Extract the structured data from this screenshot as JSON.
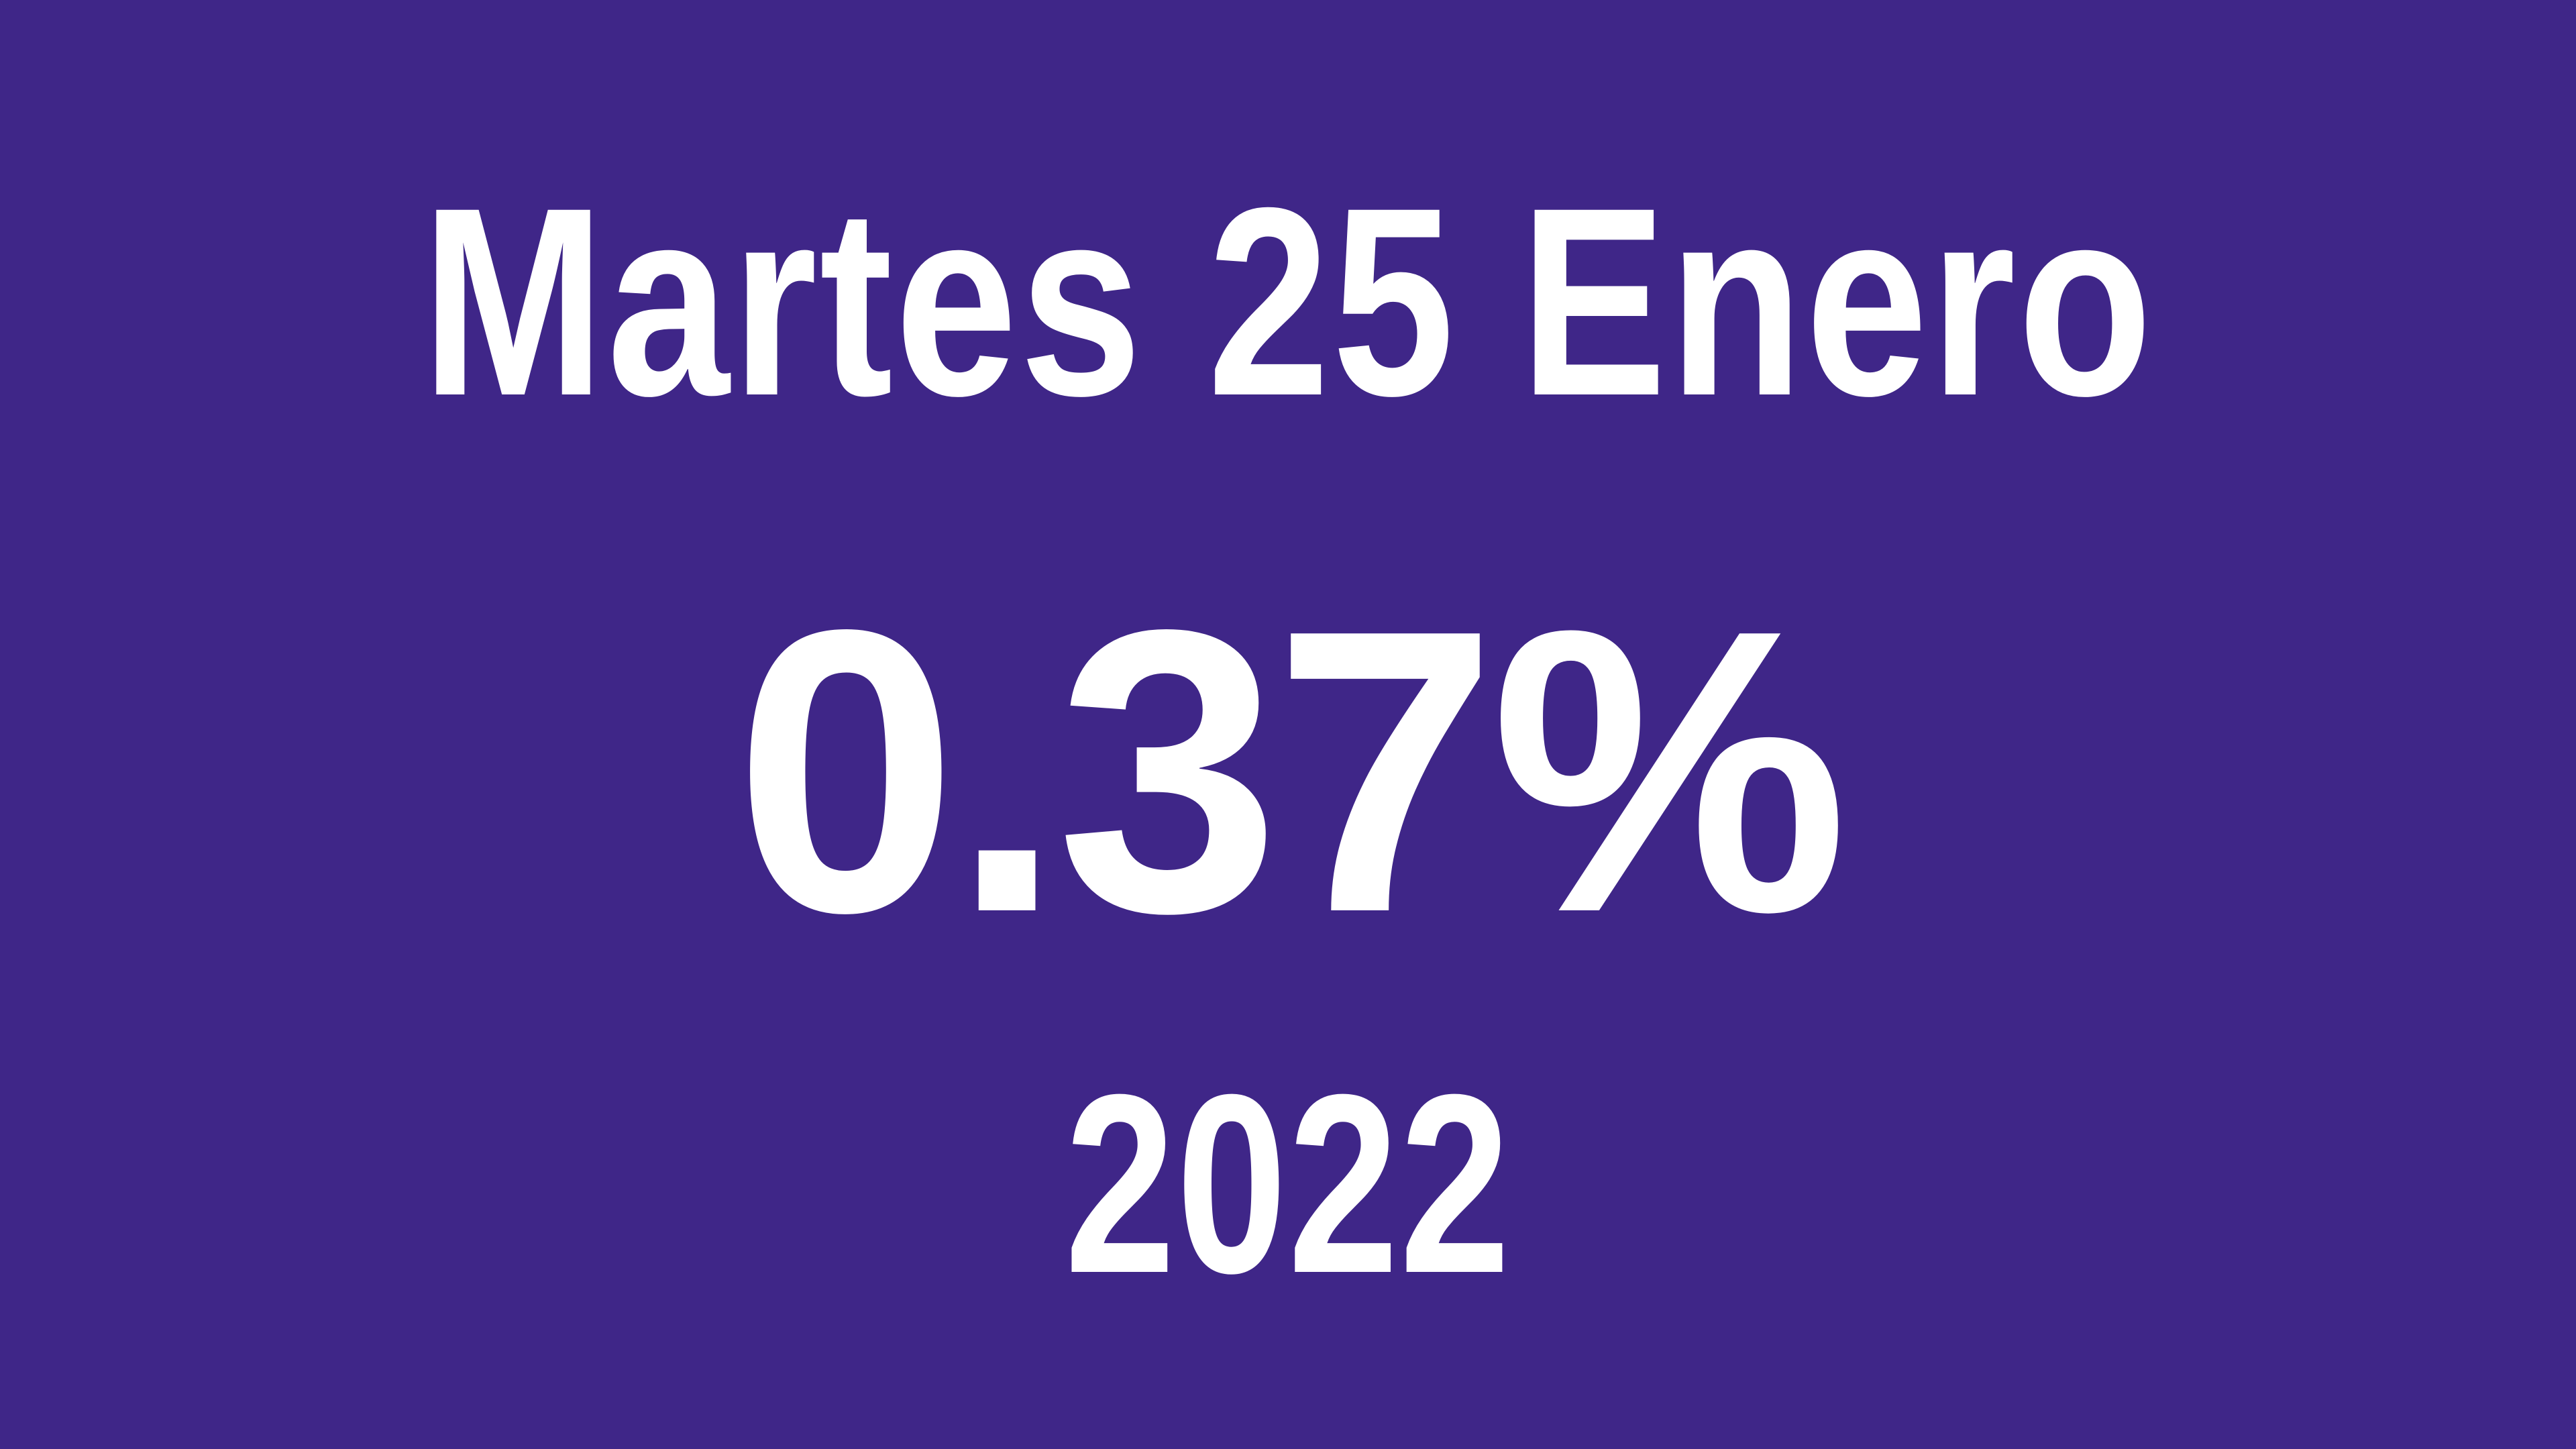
{
  "colors": {
    "background": "#3f2688",
    "text": "#ffffff"
  },
  "headline": {
    "date": "Martes 25 Enero",
    "rate": "0.37%",
    "year": "2022"
  }
}
